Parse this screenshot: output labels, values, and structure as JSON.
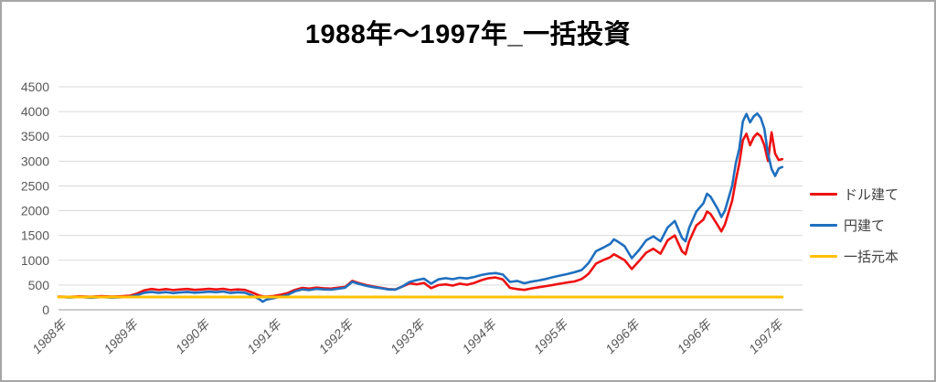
{
  "title": "1988年〜1997年_一括投資",
  "legend": {
    "items": [
      {
        "key": "usd",
        "label": "ドル建て",
        "color": "#ee1111"
      },
      {
        "key": "jpy",
        "label": "円建て",
        "color": "#1f6fbf"
      },
      {
        "key": "principal",
        "label": "一括元本",
        "color": "#ffc000"
      }
    ]
  },
  "chart_data": {
    "type": "line",
    "title": "1988年〜1997年_一括投資",
    "xlabel": "",
    "ylabel": "",
    "ylim": [
      0,
      4500
    ],
    "y_ticks": [
      0,
      500,
      1000,
      1500,
      2000,
      2500,
      3000,
      3500,
      4000,
      4500
    ],
    "x_tick_labels": [
      "1988年",
      "1989年",
      "1990年",
      "1991年",
      "1992年",
      "1993年",
      "1994年",
      "1995年",
      "1996年",
      "1996年",
      "1997年"
    ],
    "x_range_ticks": [
      0,
      10.1
    ],
    "grid": true,
    "legend_position": "right",
    "colors": {
      "grid": "#d9d9d9",
      "axis_line": "#afafaf",
      "tick_label": "#595959"
    },
    "t": [
      0,
      0.15,
      0.3,
      0.45,
      0.6,
      0.75,
      0.9,
      1,
      1.1,
      1.2,
      1.3,
      1.4,
      1.5,
      1.6,
      1.7,
      1.8,
      1.9,
      2,
      2.1,
      2.2,
      2.3,
      2.4,
      2.5,
      2.6,
      2.7,
      2.8,
      2.85,
      2.9,
      3,
      3.1,
      3.2,
      3.3,
      3.4,
      3.5,
      3.6,
      3.7,
      3.8,
      3.9,
      4,
      4.05,
      4.1,
      4.2,
      4.3,
      4.4,
      4.5,
      4.6,
      4.7,
      4.8,
      4.9,
      5,
      5.1,
      5.2,
      5.3,
      5.4,
      5.5,
      5.6,
      5.7,
      5.8,
      5.9,
      6,
      6.1,
      6.2,
      6.3,
      6.4,
      6.5,
      6.6,
      6.7,
      6.8,
      6.9,
      7,
      7.1,
      7.2,
      7.3,
      7.35,
      7.4,
      7.5,
      7.6,
      7.7,
      7.75,
      7.8,
      7.9,
      8,
      8.1,
      8.2,
      8.3,
      8.4,
      8.5,
      8.6,
      8.7,
      8.75,
      8.8,
      8.9,
      9,
      9.05,
      9.1,
      9.2,
      9.25,
      9.3,
      9.4,
      9.45,
      9.5,
      9.55,
      9.6,
      9.65,
      9.7,
      9.75,
      9.8,
      9.85,
      9.9,
      9.95,
      10,
      10.05,
      10.1
    ],
    "series": [
      {
        "name": "ドル建て",
        "key": "usd",
        "color": "#ee1111",
        "width": 2.6,
        "values": [
          268,
          262,
          272,
          264,
          274,
          266,
          276,
          285,
          330,
          395,
          420,
          400,
          418,
          398,
          412,
          420,
          402,
          412,
          422,
          412,
          425,
          398,
          412,
          402,
          350,
          290,
          272,
          268,
          278,
          305,
          340,
          402,
          442,
          428,
          448,
          436,
          428,
          446,
          462,
          520,
          585,
          535,
          498,
          468,
          445,
          418,
          412,
          470,
          535,
          515,
          542,
          438,
          498,
          512,
          488,
          528,
          505,
          542,
          598,
          638,
          652,
          612,
          442,
          418,
          402,
          432,
          455,
          478,
          502,
          528,
          552,
          572,
          622,
          672,
          732,
          932,
          1002,
          1062,
          1122,
          1082,
          1002,
          822,
          982,
          1152,
          1232,
          1132,
          1402,
          1502,
          1182,
          1122,
          1382,
          1702,
          1822,
          1982,
          1932,
          1702,
          1582,
          1722,
          2202,
          2602,
          2952,
          3422,
          3552,
          3322,
          3482,
          3562,
          3502,
          3322,
          3002,
          3582,
          3152,
          3022,
          3042
        ]
      },
      {
        "name": "円建て",
        "key": "jpy",
        "color": "#1f6fbf",
        "width": 2.6,
        "values": [
          262,
          248,
          258,
          244,
          256,
          246,
          255,
          266,
          300,
          345,
          362,
          342,
          358,
          338,
          352,
          362,
          344,
          354,
          366,
          356,
          368,
          340,
          355,
          345,
          292,
          215,
          165,
          205,
          235,
          268,
          305,
          372,
          412,
          398,
          422,
          412,
          406,
          426,
          446,
          505,
          565,
          518,
          482,
          455,
          435,
          412,
          408,
          472,
          562,
          600,
          628,
          528,
          615,
          638,
          618,
          648,
          632,
          662,
          702,
          728,
          742,
          712,
          562,
          582,
          535,
          568,
          592,
          622,
          658,
          692,
          722,
          758,
          802,
          872,
          952,
          1182,
          1252,
          1332,
          1422,
          1382,
          1282,
          1042,
          1202,
          1402,
          1482,
          1382,
          1662,
          1792,
          1452,
          1382,
          1652,
          1982,
          2152,
          2342,
          2282,
          2032,
          1872,
          2002,
          2502,
          2952,
          3252,
          3802,
          3952,
          3782,
          3902,
          3962,
          3872,
          3652,
          3152,
          2842,
          2702,
          2852,
          2882
        ]
      },
      {
        "name": "一括元本",
        "key": "principal",
        "color": "#ffc000",
        "width": 3,
        "constant": 258
      }
    ]
  }
}
